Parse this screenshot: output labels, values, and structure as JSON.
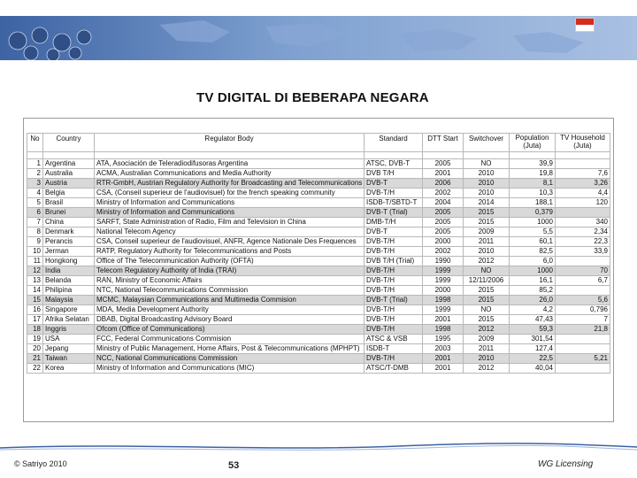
{
  "slide": {
    "title": "TV DIGITAL DI BEBERAPA NEGARA"
  },
  "table": {
    "headers": {
      "no": "No",
      "country": "Country",
      "regulator": "Regulator Body",
      "standard": "Standard",
      "dtt_start": "DTT Start",
      "switchover": "Switchover",
      "population": "Population (Juta)",
      "tv_household": "TV Household (Juta)"
    },
    "rows": [
      {
        "no": "1",
        "country": "Argentina",
        "regulator": "ATA, Asociación de Teleradiodifusoras Argentina",
        "standard": "ATSC, DVB-T",
        "dtt": "2005",
        "switch": "NO",
        "pop": "39,9",
        "tv": ""
      },
      {
        "no": "2",
        "country": "Australia",
        "regulator": "ACMA, Australian Communications and Media Authority",
        "standard": "DVB T/H",
        "dtt": "2001",
        "switch": "2010",
        "pop": "19,8",
        "tv": "7,6"
      },
      {
        "no": "3",
        "country": "Austria",
        "regulator": "RTR-GmbH, Austrian Regulatory Authority for Broadcasting and Telecommunications",
        "standard": "DVB-T",
        "dtt": "2006",
        "switch": "2010",
        "pop": "8,1",
        "tv": "3,26"
      },
      {
        "no": "4",
        "country": "Belgia",
        "regulator": "CSA, (Conseil superieur de l'audiovisuel) for the french speaking community",
        "standard": "DVB-T/H",
        "dtt": "2002",
        "switch": "2010",
        "pop": "10,3",
        "tv": "4,4"
      },
      {
        "no": "5",
        "country": "Brasil",
        "regulator": "Ministry of Information and Communications",
        "standard": "ISDB-T/SBTD-T",
        "dtt": "2004",
        "switch": "2014",
        "pop": "188,1",
        "tv": "120"
      },
      {
        "no": "6",
        "country": "Brunei",
        "regulator": "Ministry of Information and Communications",
        "standard": "DVB-T (Trial)",
        "dtt": "2005",
        "switch": "2015",
        "pop": "0,379",
        "tv": ""
      },
      {
        "no": "7",
        "country": "China",
        "regulator": "SARFT, State Administration of Radio, Film and Television in China",
        "standard": "DMB-T/H",
        "dtt": "2005",
        "switch": "2015",
        "pop": "1000",
        "tv": "340"
      },
      {
        "no": "8",
        "country": "Denmark",
        "regulator": "National Telecom Agency",
        "standard": "DVB-T",
        "dtt": "2005",
        "switch": "2009",
        "pop": "5,5",
        "tv": "2,34"
      },
      {
        "no": "9",
        "country": "Perancis",
        "regulator": "CSA, Conseil superieur de l'audiovisuel, ANFR, Agence Nationale Des Frequences",
        "standard": "DVB-T/H",
        "dtt": "2000",
        "switch": "2011",
        "pop": "60,1",
        "tv": "22,3"
      },
      {
        "no": "10",
        "country": "Jerman",
        "regulator": "RATP, Regulatory Authority for Telecommunications and Posts",
        "standard": "DVB-T/H",
        "dtt": "2002",
        "switch": "2010",
        "pop": "82,5",
        "tv": "33,9"
      },
      {
        "no": "11",
        "country": "Hongkong",
        "regulator": "Office of The Telecommunication Authority (OFTA)",
        "standard": "DVB T/H (Trial)",
        "dtt": "1990",
        "switch": "2012",
        "pop": "6,0",
        "tv": ""
      },
      {
        "no": "12",
        "country": "India",
        "regulator": "Telecom Regulatory Authority of India (TRAI)",
        "standard": "DVB-T/H",
        "dtt": "1999",
        "switch": "NO",
        "pop": "1000",
        "tv": "70"
      },
      {
        "no": "13",
        "country": "Belanda",
        "regulator": "RAN, Ministry of Economic Affairs",
        "standard": "DVB-T/H",
        "dtt": "1999",
        "switch": "12/11/2006",
        "pop": "16,1",
        "tv": "6,7"
      },
      {
        "no": "14",
        "country": "Philipina",
        "regulator": "NTC, National Telecommunications Commission",
        "standard": "DVB-T/H",
        "dtt": "2000",
        "switch": "2015",
        "pop": "85,2",
        "tv": ""
      },
      {
        "no": "15",
        "country": "Malaysia",
        "regulator": "MCMC, Malaysian Communications and Multimedia Commision",
        "standard": "DVB-T (Trial)",
        "dtt": "1998",
        "switch": "2015",
        "pop": "26,0",
        "tv": "5,6"
      },
      {
        "no": "16",
        "country": "Singapore",
        "regulator": "MDA, Media Development Authority",
        "standard": "DVB-T/H",
        "dtt": "1999",
        "switch": "NO",
        "pop": "4,2",
        "tv": "0,796"
      },
      {
        "no": "17",
        "country": "Afrika Selatan",
        "regulator": "DBAB, Digital Broadcasting Advisory Board",
        "standard": "DVB-T/H",
        "dtt": "2001",
        "switch": "2015",
        "pop": "47,43",
        "tv": "7"
      },
      {
        "no": "18",
        "country": "Inggris",
        "regulator": "Ofcom (Office of Communications)",
        "standard": "DVB-T/H",
        "dtt": "1998",
        "switch": "2012",
        "pop": "59,3",
        "tv": "21,8"
      },
      {
        "no": "19",
        "country": "USA",
        "regulator": "FCC, Federal Communications Commision",
        "standard": "ATSC & VSB",
        "dtt": "1995",
        "switch": "2009",
        "pop": "301,54",
        "tv": ""
      },
      {
        "no": "20",
        "country": "Jepang",
        "regulator": "Ministry of Public Management, Home Affairs, Post & Telecommunications (MPHPT)",
        "standard": "ISDB-T",
        "dtt": "2003",
        "switch": "2011",
        "pop": "127,4",
        "tv": ""
      },
      {
        "no": "21",
        "country": "Taiwan",
        "regulator": "NCC, National Communications Commission",
        "standard": "DVB-T/H",
        "dtt": "2001",
        "switch": "2010",
        "pop": "22,5",
        "tv": "5,21"
      },
      {
        "no": "22",
        "country": "Korea",
        "regulator": "Ministry of Information and Communications (MIC)",
        "standard": "ATSC/T-DMB",
        "dtt": "2001",
        "switch": "2012",
        "pop": "40,04",
        "tv": ""
      }
    ]
  },
  "footer": {
    "copyright": "© Satriyo 2010",
    "page_number": "53",
    "right_label": "WG Licensing"
  },
  "colors": {
    "banner": "#3d63a3",
    "shaded_row": "#d9d9d9",
    "flag_red": "#d52b1e"
  }
}
